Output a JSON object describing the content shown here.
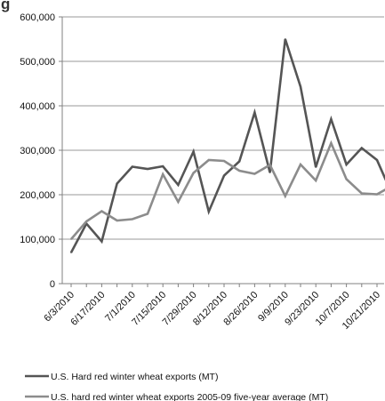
{
  "chart_data": {
    "type": "line",
    "title": "",
    "title_fragment": "g",
    "xlabel": "",
    "ylabel": "",
    "ylim": [
      0,
      600000
    ],
    "y_ticks": [
      "0",
      "100,000",
      "200,000",
      "300,000",
      "400,000",
      "500,000",
      "600,000"
    ],
    "grid": "horizontal",
    "legend_position": "bottom",
    "x": [
      "6/3/2010",
      "6/10/2010",
      "6/17/2010",
      "6/24/2010",
      "7/1/2010",
      "7/8/2010",
      "7/15/2010",
      "7/22/2010",
      "7/29/2010",
      "8/5/2010",
      "8/12/2010",
      "8/19/2010",
      "8/26/2010",
      "9/2/2010",
      "9/9/2010",
      "9/16/2010",
      "9/23/2010",
      "9/30/2010",
      "10/7/2010",
      "10/14/2010",
      "10/21/2010",
      "10/28/2010"
    ],
    "x_tick_labels": [
      "6/3/2010",
      "6/17/2010",
      "7/1/2010",
      "7/15/2010",
      "7/29/2010",
      "8/12/2010",
      "8/26/2010",
      "9/9/2010",
      "9/23/2010",
      "10/7/2010",
      "10/21/2010"
    ],
    "series": [
      {
        "name": "U.S. Hard red winter wheat exports (MT)",
        "color": "#555555",
        "values": [
          70000,
          135000,
          95000,
          225000,
          263000,
          258000,
          264000,
          222000,
          297000,
          162000,
          243000,
          275000,
          385000,
          250000,
          550000,
          443000,
          262000,
          370000,
          268000,
          305000,
          278000,
          200000
        ]
      },
      {
        "name": "U.S. hard red winter wheat exports 2005-09 five-year average (MT)",
        "color": "#8c8c8c",
        "values": [
          100000,
          140000,
          163000,
          142000,
          145000,
          157000,
          246000,
          184000,
          249000,
          278000,
          276000,
          254000,
          247000,
          267000,
          197000,
          268000,
          232000,
          316000,
          235000,
          203000,
          201000,
          220000
        ]
      }
    ]
  }
}
